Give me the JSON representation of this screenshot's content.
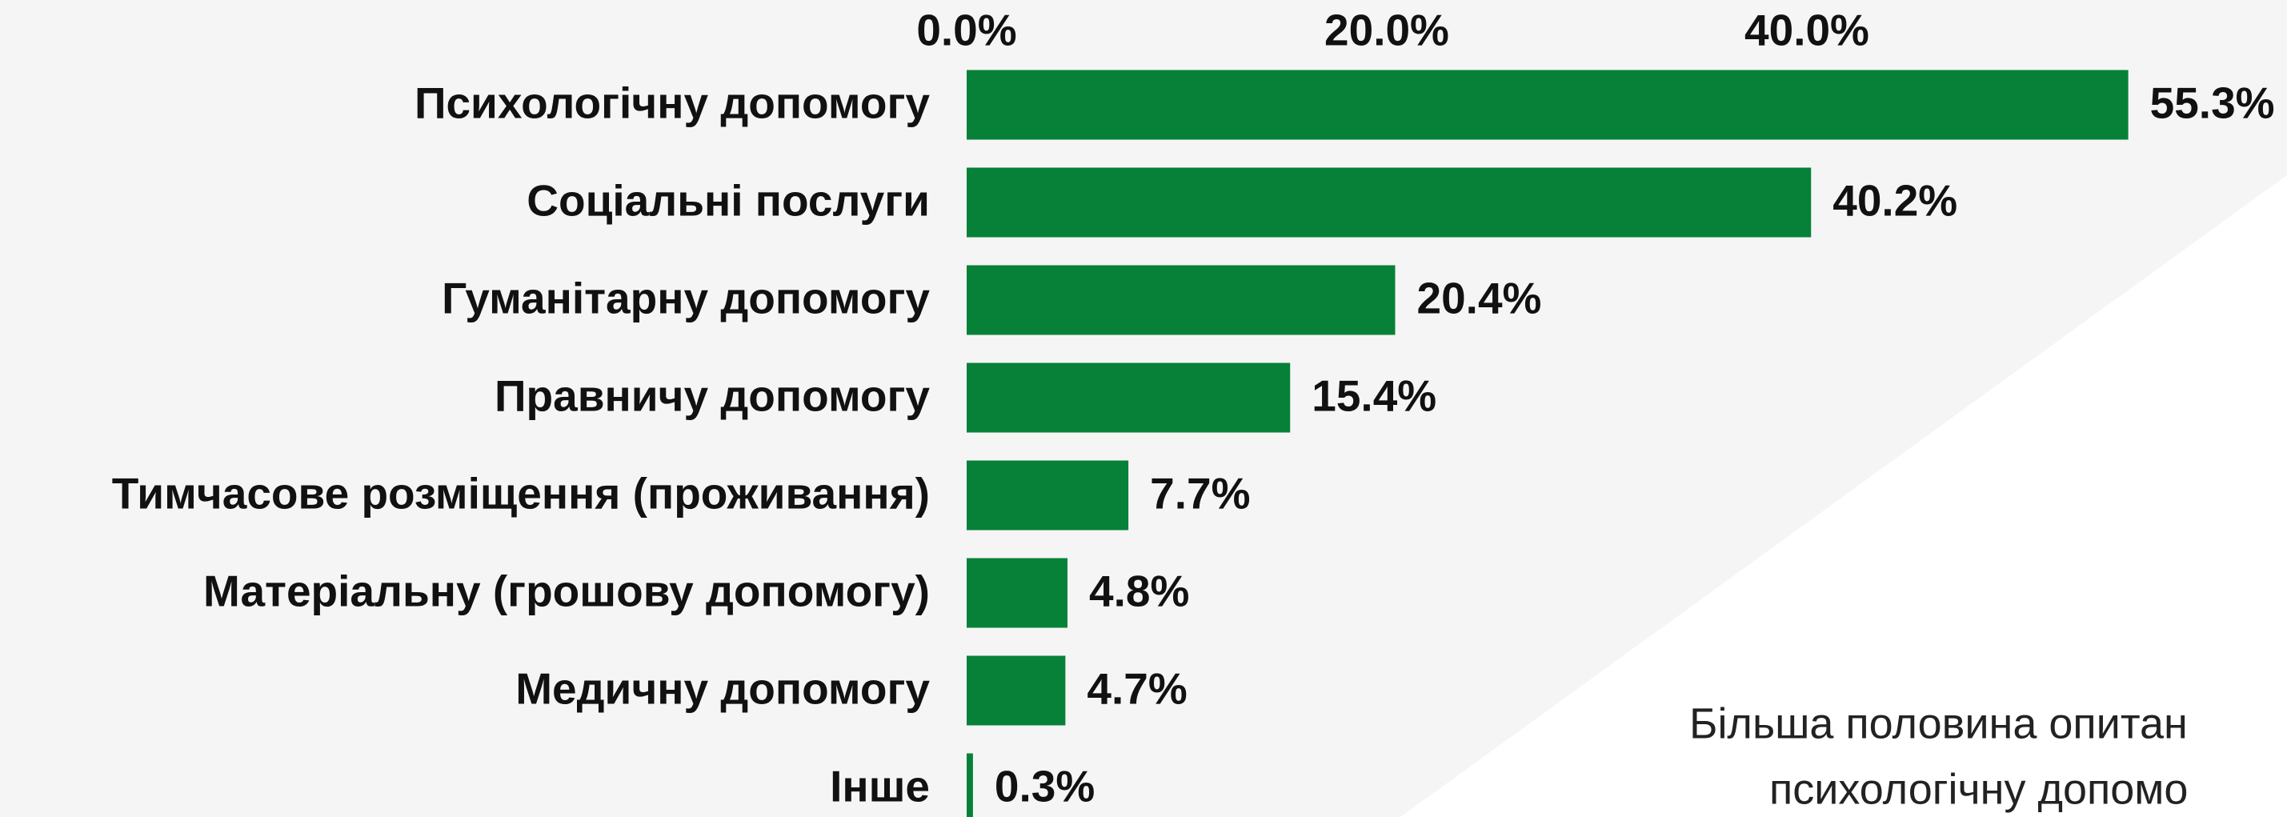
{
  "chart_data": {
    "type": "barh",
    "categories": [
      "Психологічну допомогу",
      "Соціальні послуги",
      "Гуманітарну допомогу",
      "Правничу допомогу",
      "Тимчасове розміщення (проживання)",
      "Матеріальну (грошову допомогу)",
      "Медичну допомогу",
      "Інше"
    ],
    "values": [
      55.3,
      40.2,
      20.4,
      15.4,
      7.7,
      4.8,
      4.7,
      0.3
    ],
    "value_labels": [
      "55.3%",
      "40.2%",
      "20.4%",
      "15.4%",
      "7.7%",
      "4.8%",
      "4.7%",
      "0.3%"
    ],
    "color": "#078138",
    "xlim": [
      0,
      60
    ],
    "xticks": [
      {
        "value": 0,
        "label": "0.0%"
      },
      {
        "value": 20,
        "label": "20.0%"
      },
      {
        "value": 40,
        "label": "40.0%"
      }
    ],
    "annotations": [
      "Більша половина опитан",
      "психологічну допомо"
    ]
  }
}
